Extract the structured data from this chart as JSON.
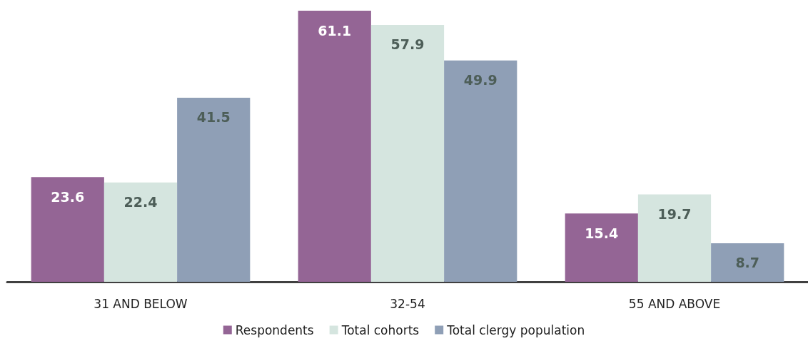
{
  "chart_data": {
    "type": "bar",
    "categories": [
      "31 AND BELOW",
      "32-54",
      "55 AND ABOVE"
    ],
    "series": [
      {
        "name": "Respondents",
        "color": "#946595",
        "values": [
          23.6,
          61.1,
          15.4
        ]
      },
      {
        "name": "Total cohorts",
        "color": "#d5e5df",
        "values": [
          22.4,
          57.9,
          19.7
        ]
      },
      {
        "name": "Total clergy population",
        "color": "#8f9fb6",
        "values": [
          41.5,
          49.9,
          8.7
        ]
      }
    ],
    "data_labels": true,
    "legend": "bottom"
  }
}
